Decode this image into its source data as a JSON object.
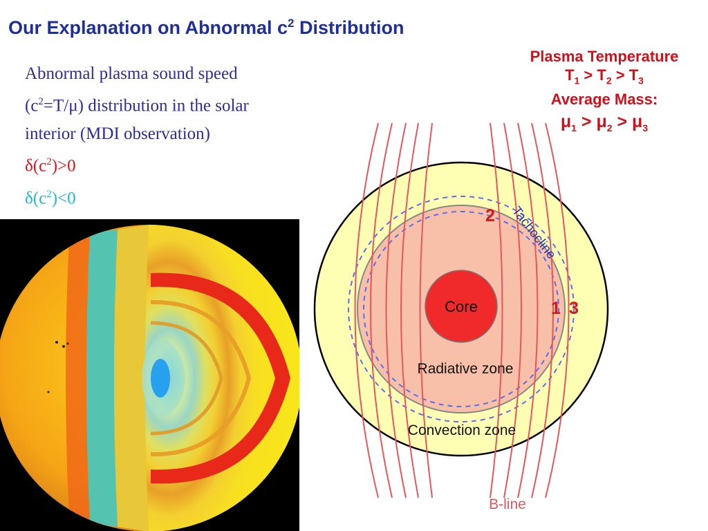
{
  "title": {
    "text": "Our Explanation on Abnormal c",
    "sup": "2",
    "suffix": " Distribution"
  },
  "description": {
    "line1": "Abnormal plasma sound speed",
    "line2_pre": "(c",
    "line2_sup": "2",
    "line2_post": "=T/μ) distribution in the solar",
    "line3": "interior (MDI observation)",
    "pos_pre": "δ(c",
    "pos_sup": "2",
    "pos_post": ")>0",
    "neg_pre": "δ(c",
    "neg_sup": "2",
    "neg_post": ")<0"
  },
  "legend": {
    "heading1": "Plasma Temperature",
    "temp": {
      "a": "T",
      "s1": "1",
      "gt1": " > T",
      "s2": "2",
      "gt2": " > T",
      "s3": "3"
    },
    "heading2": "Average Mass:",
    "mass": {
      "a": "μ",
      "s1": "1",
      "gt1": " > μ",
      "s2": "2",
      "gt2": " > μ",
      "s3": "3"
    }
  },
  "diagram": {
    "core_label": "Core",
    "radiative_label": "Radiative zone",
    "convection_label": "Convection zone",
    "tachocline_label": "Tachocline",
    "bline_label": "B-line",
    "marker_2": "2",
    "marker_1": "1",
    "marker_3": "3"
  },
  "colors": {
    "title": "#1f2f9a",
    "accent_red": "#e0131a",
    "cyan": "#1eb8d6",
    "convection_fill": "#ffffb3",
    "radiative_fill": "#f8c0a8",
    "core_fill": "#f02a2a",
    "field_line": "#e8555a",
    "tachocline_dash": "#5a6cf0"
  }
}
